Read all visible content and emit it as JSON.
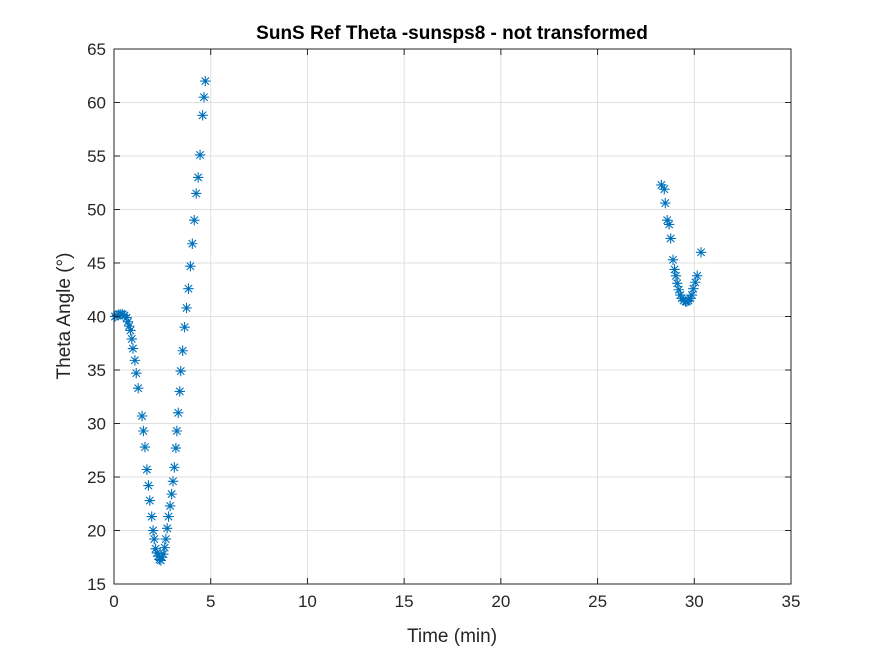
{
  "chart_data": {
    "type": "scatter",
    "title": "SunS Ref Theta -sunsps8 - not transformed",
    "xlabel": "Time (min)",
    "ylabel": "Theta Angle (°)",
    "xlim": [
      0,
      35
    ],
    "ylim": [
      15,
      65
    ],
    "xticks": [
      "0",
      "5",
      "10",
      "15",
      "20",
      "25",
      "30",
      "35"
    ],
    "yticks": [
      "15",
      "20",
      "25",
      "30",
      "35",
      "40",
      "45",
      "50",
      "55",
      "60",
      "65"
    ],
    "grid": true,
    "marker": "asterisk",
    "color": "#0072BD",
    "series": [
      {
        "points": [
          [
            0.05,
            40.0
          ],
          [
            0.15,
            40.1
          ],
          [
            0.25,
            40.2
          ],
          [
            0.35,
            40.2
          ],
          [
            0.45,
            40.2
          ],
          [
            0.55,
            40.1
          ],
          [
            0.65,
            39.9
          ],
          [
            0.72,
            39.5
          ],
          [
            0.78,
            39.1
          ],
          [
            0.85,
            38.7
          ],
          [
            0.92,
            37.9
          ],
          [
            0.98,
            37.0
          ],
          [
            1.08,
            35.9
          ],
          [
            1.15,
            34.7
          ],
          [
            1.25,
            33.3
          ],
          [
            1.45,
            30.7
          ],
          [
            1.52,
            29.3
          ],
          [
            1.6,
            27.8
          ],
          [
            1.7,
            25.7
          ],
          [
            1.78,
            24.2
          ],
          [
            1.85,
            22.8
          ],
          [
            1.95,
            21.3
          ],
          [
            2.02,
            20.0
          ],
          [
            2.08,
            19.2
          ],
          [
            2.15,
            18.3
          ],
          [
            2.22,
            17.9
          ],
          [
            2.28,
            17.6
          ],
          [
            2.35,
            17.3
          ],
          [
            2.42,
            17.2
          ],
          [
            2.48,
            17.5
          ],
          [
            2.55,
            17.8
          ],
          [
            2.62,
            18.4
          ],
          [
            2.68,
            19.2
          ],
          [
            2.75,
            20.2
          ],
          [
            2.82,
            21.3
          ],
          [
            2.9,
            22.3
          ],
          [
            2.98,
            23.4
          ],
          [
            3.05,
            24.6
          ],
          [
            3.12,
            25.9
          ],
          [
            3.2,
            27.7
          ],
          [
            3.25,
            29.3
          ],
          [
            3.32,
            31.0
          ],
          [
            3.4,
            33.0
          ],
          [
            3.45,
            34.9
          ],
          [
            3.55,
            36.8
          ],
          [
            3.65,
            39.0
          ],
          [
            3.75,
            40.8
          ],
          [
            3.85,
            42.6
          ],
          [
            3.95,
            44.7
          ],
          [
            4.05,
            46.8
          ],
          [
            4.15,
            49.0
          ],
          [
            4.25,
            51.5
          ],
          [
            4.35,
            53.0
          ],
          [
            4.45,
            55.1
          ],
          [
            4.58,
            58.8
          ],
          [
            4.65,
            60.5
          ],
          [
            4.72,
            62.0
          ],
          [
            28.3,
            52.3
          ],
          [
            28.45,
            51.9
          ],
          [
            28.5,
            50.6
          ],
          [
            28.6,
            49.0
          ],
          [
            28.7,
            48.6
          ],
          [
            28.78,
            47.3
          ],
          [
            28.9,
            45.3
          ],
          [
            28.98,
            44.4
          ],
          [
            29.05,
            43.8
          ],
          [
            29.12,
            43.1
          ],
          [
            29.2,
            42.5
          ],
          [
            29.28,
            42.0
          ],
          [
            29.35,
            41.7
          ],
          [
            29.45,
            41.5
          ],
          [
            29.55,
            41.4
          ],
          [
            29.62,
            41.4
          ],
          [
            29.7,
            41.5
          ],
          [
            29.78,
            41.7
          ],
          [
            29.88,
            42.0
          ],
          [
            29.95,
            42.6
          ],
          [
            30.05,
            43.2
          ],
          [
            30.15,
            43.8
          ],
          [
            30.35,
            46.0
          ]
        ]
      }
    ]
  }
}
